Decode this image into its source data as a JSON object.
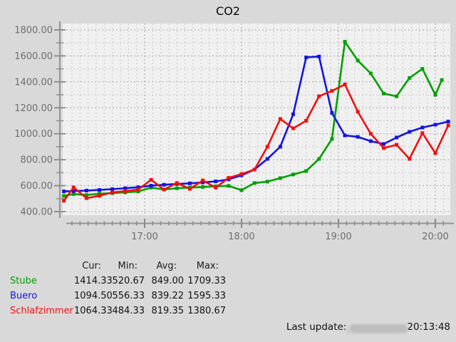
{
  "title": "CO2",
  "chart_data": {
    "type": "line",
    "title": "CO2",
    "xlabel": "",
    "ylabel": "",
    "ylim": [
      400,
      1800
    ],
    "x_range": [
      "16:09",
      "20:09"
    ],
    "grid": "dotted",
    "legend_position": "bottom-left",
    "x_ticks": [
      "17:00",
      "18:00",
      "19:00",
      "20:00"
    ],
    "y_ticks": [
      400,
      600,
      800,
      1000,
      1200,
      1400,
      1600,
      1800
    ],
    "y_tick_labels": [
      "400.00",
      "600.00",
      "800.00",
      "1000.00",
      "1200.00",
      "1400.00",
      "1600.00",
      "1800.00"
    ],
    "series": [
      {
        "name": "Stube",
        "color": "#00a000",
        "points": [
          [
            "16:10",
            521
          ],
          [
            "16:16",
            535
          ],
          [
            "16:24",
            528
          ],
          [
            "16:32",
            538
          ],
          [
            "16:40",
            542
          ],
          [
            "16:48",
            548
          ],
          [
            "16:56",
            555
          ],
          [
            "17:04",
            585
          ],
          [
            "17:12",
            570
          ],
          [
            "17:20",
            580
          ],
          [
            "17:28",
            585
          ],
          [
            "17:36",
            590
          ],
          [
            "17:44",
            595
          ],
          [
            "17:52",
            598
          ],
          [
            "18:00",
            565
          ],
          [
            "18:08",
            620
          ],
          [
            "18:16",
            631
          ],
          [
            "18:24",
            658
          ],
          [
            "18:32",
            686
          ],
          [
            "18:40",
            713
          ],
          [
            "18:48",
            806
          ],
          [
            "18:56",
            960
          ],
          [
            "19:04",
            1709
          ],
          [
            "19:12",
            1564
          ],
          [
            "19:20",
            1465
          ],
          [
            "19:28",
            1310
          ],
          [
            "19:36",
            1289
          ],
          [
            "19:44",
            1430
          ],
          [
            "19:52",
            1500
          ],
          [
            "20:00",
            1300
          ],
          [
            "20:04",
            1414
          ]
        ]
      },
      {
        "name": "Buero",
        "color": "#1414e0",
        "points": [
          [
            "16:10",
            556
          ],
          [
            "16:16",
            558
          ],
          [
            "16:24",
            562
          ],
          [
            "16:32",
            567
          ],
          [
            "16:40",
            573
          ],
          [
            "16:48",
            580
          ],
          [
            "16:56",
            588
          ],
          [
            "17:04",
            600
          ],
          [
            "17:12",
            607
          ],
          [
            "17:20",
            613
          ],
          [
            "17:28",
            618
          ],
          [
            "17:36",
            625
          ],
          [
            "17:44",
            633
          ],
          [
            "17:52",
            648
          ],
          [
            "18:00",
            680
          ],
          [
            "18:08",
            724
          ],
          [
            "18:16",
            806
          ],
          [
            "18:24",
            900
          ],
          [
            "18:32",
            1150
          ],
          [
            "18:40",
            1588
          ],
          [
            "18:48",
            1595
          ],
          [
            "18:56",
            1160
          ],
          [
            "19:04",
            987
          ],
          [
            "19:12",
            976
          ],
          [
            "19:20",
            943
          ],
          [
            "19:28",
            921
          ],
          [
            "19:36",
            971
          ],
          [
            "19:44",
            1015
          ],
          [
            "19:52",
            1048
          ],
          [
            "20:00",
            1070
          ],
          [
            "20:08",
            1094
          ]
        ]
      },
      {
        "name": "Schlafzimmer",
        "color": "#ee1111",
        "points": [
          [
            "16:10",
            484
          ],
          [
            "16:16",
            587
          ],
          [
            "16:24",
            504
          ],
          [
            "16:32",
            522
          ],
          [
            "16:40",
            548
          ],
          [
            "16:48",
            558
          ],
          [
            "16:56",
            570
          ],
          [
            "17:04",
            645
          ],
          [
            "17:12",
            570
          ],
          [
            "17:20",
            620
          ],
          [
            "17:28",
            575
          ],
          [
            "17:36",
            640
          ],
          [
            "17:44",
            585
          ],
          [
            "17:52",
            660
          ],
          [
            "18:00",
            690
          ],
          [
            "18:08",
            724
          ],
          [
            "18:16",
            900
          ],
          [
            "18:24",
            1114
          ],
          [
            "18:32",
            1042
          ],
          [
            "18:40",
            1100
          ],
          [
            "18:48",
            1289
          ],
          [
            "18:56",
            1330
          ],
          [
            "19:04",
            1380
          ],
          [
            "19:12",
            1170
          ],
          [
            "19:20",
            1000
          ],
          [
            "19:28",
            890
          ],
          [
            "19:36",
            915
          ],
          [
            "19:44",
            806
          ],
          [
            "19:52",
            1005
          ],
          [
            "20:00",
            850
          ],
          [
            "20:08",
            1064
          ]
        ]
      }
    ]
  },
  "legend": {
    "headers": [
      "Cur:",
      "Min:",
      "Avg:",
      "Max:"
    ],
    "rows": [
      {
        "label": "Stube",
        "color": "#00a000",
        "cur": "1414.33",
        "min": "520.67",
        "avg": "849.00",
        "max": "1709.33"
      },
      {
        "label": "Buero",
        "color": "#1414e0",
        "cur": "1094.50",
        "min": "556.33",
        "avg": "839.22",
        "max": "1595.33"
      },
      {
        "label": "Schlafzimmer",
        "color": "#ee1111",
        "cur": "1064.33",
        "min": "484.33",
        "avg": "819.35",
        "max": "1380.67"
      }
    ]
  },
  "footer": {
    "last_update_label": "Last update:",
    "last_update_time": "20:13:48"
  },
  "colors": {
    "background": "#d9d9d9",
    "plot_background": "#f2f2f2",
    "grid_minor": "#c9c9c9",
    "grid_major": "#a3a3a3",
    "axis": "#949494",
    "axis_labels": "#6e6e6e"
  }
}
